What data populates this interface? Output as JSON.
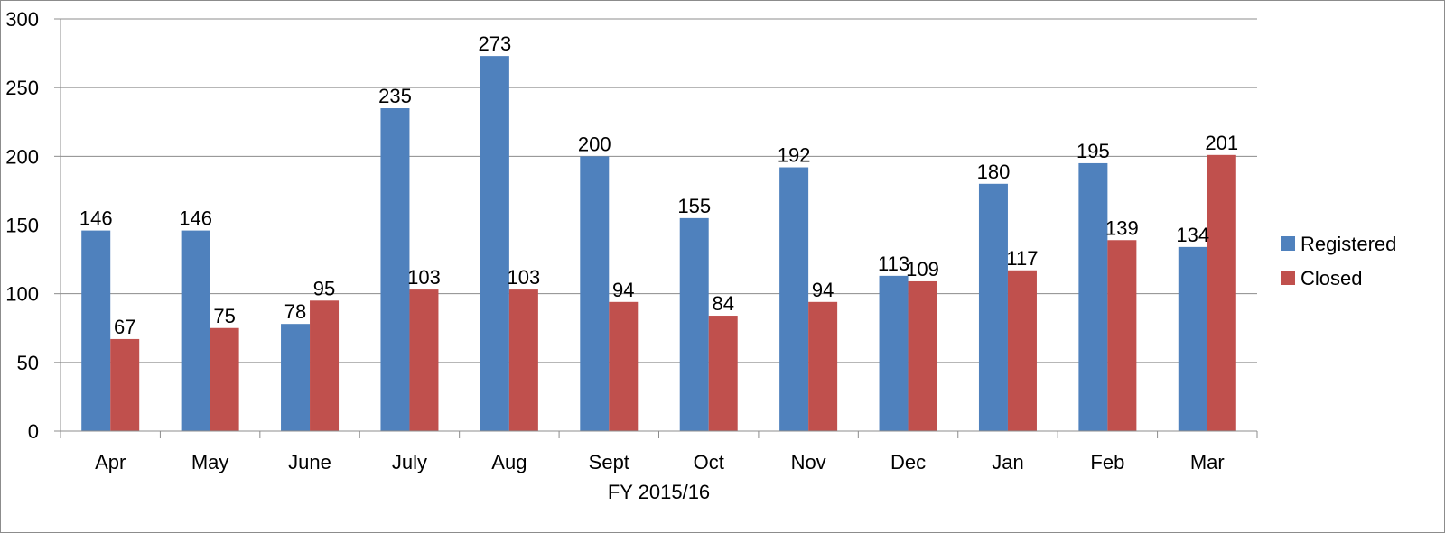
{
  "chart_data": {
    "type": "bar",
    "categories": [
      "Apr",
      "May",
      "June",
      "July",
      "Aug",
      "Sept",
      "Oct",
      "Nov",
      "Dec",
      "Jan",
      "Feb",
      "Mar"
    ],
    "series": [
      {
        "name": "Registered",
        "color": "#4F81BD",
        "values": [
          146,
          146,
          78,
          235,
          273,
          200,
          155,
          192,
          113,
          180,
          195,
          134
        ]
      },
      {
        "name": "Closed",
        "color": "#C0504D",
        "values": [
          67,
          75,
          95,
          103,
          103,
          94,
          84,
          94,
          109,
          117,
          139,
          201
        ]
      }
    ],
    "xlabel": "FY 2015/16",
    "ylabel": "",
    "ylim": [
      0,
      300
    ],
    "yticks": [
      "0",
      "50",
      "100",
      "150",
      "200",
      "250",
      "300"
    ],
    "grid": true,
    "legend_position": "right"
  }
}
